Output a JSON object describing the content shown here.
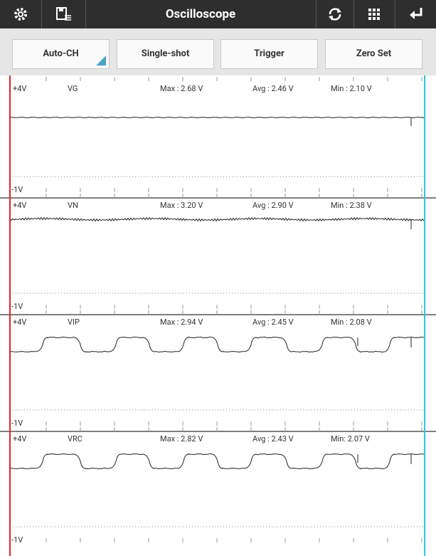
{
  "header": {
    "title": "Oscilloscope"
  },
  "buttons": [
    "Auto-CH",
    "Single-shot",
    "Trigger",
    "Zero Set"
  ],
  "channels": [
    {
      "top": "+4V",
      "name": "VG",
      "max": "Max : 2.68 V",
      "avg": "Avg : 2.46 V",
      "min": "Min : 2.10 V",
      "bottom": "-1V"
    },
    {
      "top": "+4V",
      "name": "VN",
      "max": "Max : 3.20 V",
      "avg": "Avg : 2.90 V",
      "min": "Min : 2.38 V",
      "bottom": "-1V"
    },
    {
      "top": "+4V",
      "name": "VIP",
      "max": "Max : 2.94 V",
      "avg": "Avg : 2.45 V",
      "min": "Min : 2.08 V",
      "bottom": "-1V"
    },
    {
      "top": "+4V",
      "name": "VRC",
      "max": "Max : 2.82 V",
      "avg": "Avg : 2.43 V",
      "min": "Min: 2.07 V",
      "bottom": "-1V"
    }
  ]
}
